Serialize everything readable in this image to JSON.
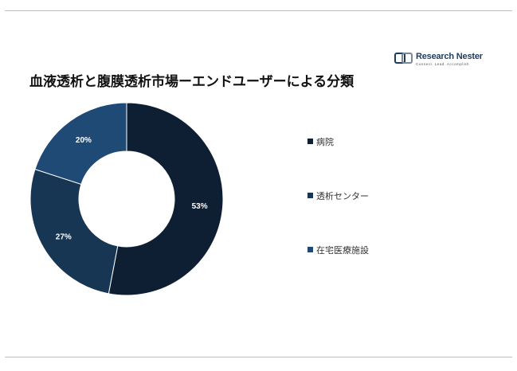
{
  "title": "血液透析と腹膜透析市場ーエンドユーザーによる分類",
  "logo": {
    "name_part1": "Research ",
    "name_part2": "Nester",
    "tagline": "Connect. Lead. Accomplish"
  },
  "colors": {
    "rule": "#bfbfbf",
    "label_text": "#ffffff"
  },
  "chart_data": {
    "type": "pie",
    "variant": "donut",
    "title": "血液透析と腹膜透析市場ーエンドユーザーによる分類",
    "legend_position": "right",
    "series": [
      {
        "name": "病院",
        "value": 53,
        "label": "53%",
        "color": "#0e1e33"
      },
      {
        "name": "透析センター",
        "value": 27,
        "label": "27%",
        "color": "#163654"
      },
      {
        "name": "在宅医療施設",
        "value": 20,
        "label": "20%",
        "color": "#1e4a75"
      }
    ]
  }
}
